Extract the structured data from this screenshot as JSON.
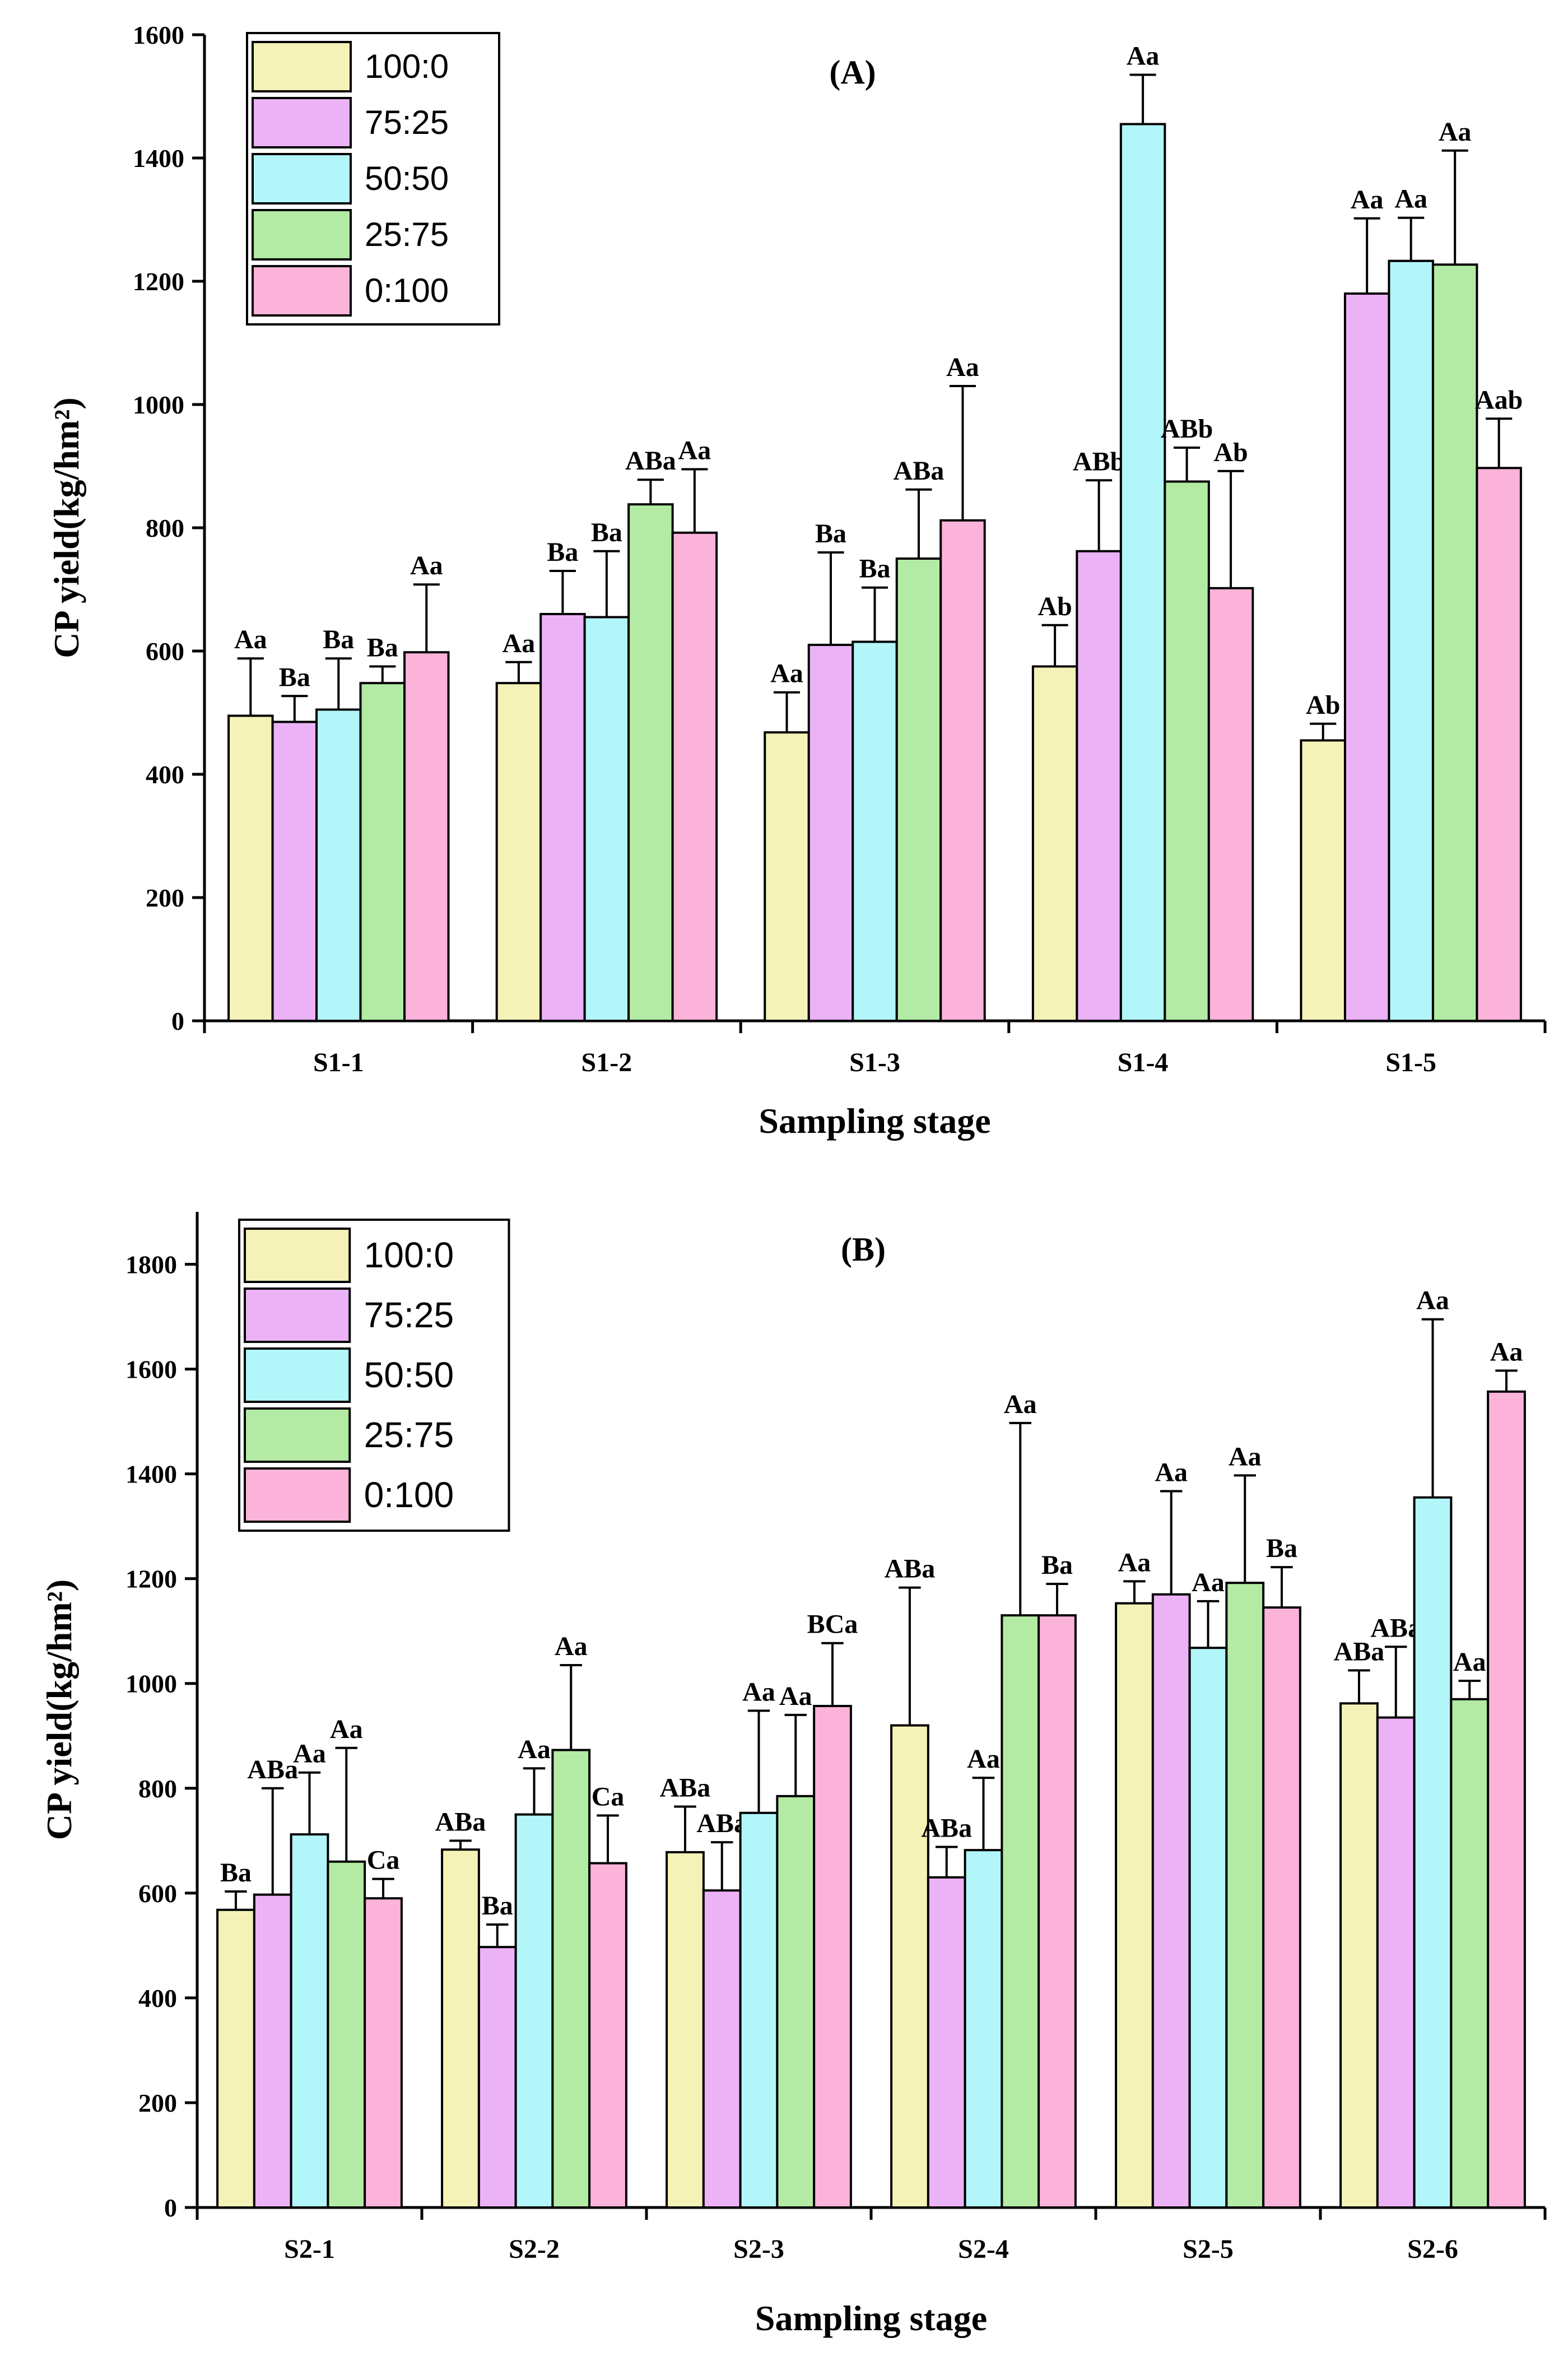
{
  "chart_data": [
    {
      "type": "bar",
      "title": "(A)",
      "x_label": "Sampling stage",
      "y_label": "CP yield(kg/hm²)",
      "categories": [
        "S1-1",
        "S1-2",
        "S1-3",
        "S1-4",
        "S1-5"
      ],
      "ylim": [
        0,
        1600
      ],
      "yticks": [
        0,
        200,
        400,
        600,
        800,
        1000,
        1200,
        1400,
        1600
      ],
      "legend": "top-left",
      "series": [
        {
          "name": "100:0",
          "color": "#f5f2b8",
          "values": [
            495,
            548,
            468,
            575,
            455
          ],
          "errors": [
            93,
            34,
            65,
            67,
            27
          ],
          "letters": [
            "Aa",
            "Aa",
            "Aa",
            "Ab",
            "Ab"
          ]
        },
        {
          "name": "75:25",
          "color": "#ecb2f6",
          "values": [
            485,
            660,
            610,
            762,
            1180
          ],
          "errors": [
            42,
            70,
            150,
            115,
            122
          ],
          "letters": [
            "Ba",
            "Ba",
            "Ba",
            "ABb",
            "Aa"
          ]
        },
        {
          "name": "50:50",
          "color": "#b2f6fa",
          "values": [
            505,
            655,
            615,
            1455,
            1233
          ],
          "errors": [
            83,
            107,
            88,
            80,
            70
          ],
          "letters": [
            "Ba",
            "Ba",
            "Ba",
            "Aa",
            "Aa"
          ]
        },
        {
          "name": "25:75",
          "color": "#b3eba4",
          "values": [
            548,
            838,
            750,
            875,
            1227
          ],
          "errors": [
            27,
            40,
            112,
            55,
            185
          ],
          "letters": [
            "Ba",
            "ABa",
            "ABa",
            "ABb",
            "Aa"
          ]
        },
        {
          "name": "0:100",
          "color": "#fbb3da",
          "values": [
            598,
            792,
            812,
            702,
            897
          ],
          "errors": [
            110,
            103,
            218,
            190,
            80
          ],
          "letters": [
            "Aa",
            "Aa",
            "Aa",
            "Ab",
            "Aab"
          ]
        }
      ]
    },
    {
      "type": "bar",
      "title": "(B)",
      "x_label": "Sampling stage",
      "y_label": "CP yield(kg/hm²)",
      "categories": [
        "S2-1",
        "S2-2",
        "S2-3",
        "S2-4",
        "S2-5",
        "S2-6"
      ],
      "ylim": [
        0,
        1900
      ],
      "yticks": [
        0,
        200,
        400,
        600,
        800,
        1000,
        1200,
        1400,
        1600,
        1800
      ],
      "legend": "top-left",
      "series": [
        {
          "name": "100:0",
          "color": "#f5f2b8",
          "values": [
            568,
            683,
            678,
            920,
            1153,
            962
          ],
          "errors": [
            35,
            17,
            87,
            263,
            42,
            63
          ],
          "letters": [
            "Ba",
            "ABa",
            "ABa",
            "ABa",
            "Aa",
            "ABa"
          ]
        },
        {
          "name": "75:25",
          "color": "#ecb2f6",
          "values": [
            597,
            497,
            605,
            630,
            1170,
            935
          ],
          "errors": [
            203,
            43,
            92,
            58,
            197,
            135
          ],
          "letters": [
            "ABa",
            "Ba",
            "ABa",
            "ABa",
            "Aa",
            "ABa"
          ]
        },
        {
          "name": "50:50",
          "color": "#b2f6fa",
          "values": [
            712,
            750,
            753,
            682,
            1068,
            1355
          ],
          "errors": [
            118,
            88,
            195,
            138,
            89,
            340
          ],
          "letters": [
            "Aa",
            "Aa",
            "Aa",
            "Aa",
            "Aa",
            "Aa"
          ]
        },
        {
          "name": "25:75",
          "color": "#b3eba4",
          "values": [
            660,
            873,
            785,
            1130,
            1192,
            970
          ],
          "errors": [
            217,
            162,
            155,
            367,
            205,
            35
          ],
          "letters": [
            "Aa",
            "Aa",
            "Aa",
            "Aa",
            "Aa",
            "Aa"
          ]
        },
        {
          "name": "0:100",
          "color": "#fbb3da",
          "values": [
            590,
            657,
            957,
            1130,
            1145,
            1557
          ],
          "errors": [
            37,
            91,
            120,
            60,
            77,
            40
          ],
          "letters": [
            "Ca",
            "Ca",
            "BCa",
            "Ba",
            "Ba",
            "Aa"
          ]
        }
      ]
    }
  ]
}
